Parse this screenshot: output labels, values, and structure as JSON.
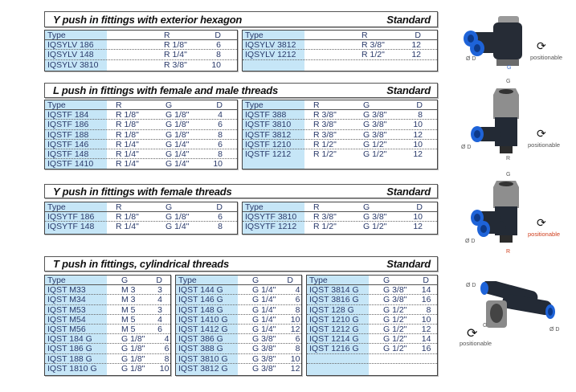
{
  "sections": [
    {
      "title": "Y push in fittings with exterior hexagon",
      "badge": "Standard",
      "layout": "g3a",
      "tables": [
        {
          "columns": [
            "Type",
            "R",
            "D"
          ],
          "rows": [
            [
              "IQSYLV 186",
              "R 1/8\"",
              "6"
            ],
            [
              "IQSYLV 148",
              "R 1/4\"",
              "8"
            ],
            [
              "IQSYLV 3810",
              "R 3/8\"",
              "10"
            ]
          ]
        },
        {
          "columns": [
            "Type",
            "R",
            "D"
          ],
          "rows": [
            [
              "IQSYLV 3812",
              "R 3/8\"",
              "12"
            ],
            [
              "IQSYLV 1212",
              "R 1/2\"",
              "12"
            ],
            [
              "",
              "",
              ""
            ]
          ]
        }
      ]
    },
    {
      "title": "L push in fittings with female and male threads",
      "badge": "Standard",
      "layout": "g4",
      "tables": [
        {
          "columns": [
            "Type",
            "R",
            "G",
            "D"
          ],
          "rows": [
            [
              "IQSTF 184",
              "R 1/8\"",
              "G 1/8\"",
              "4"
            ],
            [
              "IQSTF 186",
              "R 1/8\"",
              "G 1/8\"",
              "6"
            ],
            [
              "IQSTF 188",
              "R 1/8\"",
              "G 1/8\"",
              "8"
            ],
            [
              "IQSTF 146",
              "R 1/4\"",
              "G 1/4\"",
              "6"
            ],
            [
              "IQSTF 148",
              "R 1/4\"",
              "G 1/4\"",
              "8"
            ],
            [
              "IQSTF 1410",
              "R 1/4\"",
              "G 1/4\"",
              "10"
            ]
          ]
        },
        {
          "columns": [
            "Type",
            "R",
            "G",
            "D"
          ],
          "rows": [
            [
              "IQSTF 388",
              "R 3/8\"",
              "G 3/8\"",
              "8"
            ],
            [
              "IQSTF 3810",
              "R 3/8\"",
              "G 3/8\"",
              "10"
            ],
            [
              "IQSTF 3812",
              "R 3/8\"",
              "G 3/8\"",
              "12"
            ],
            [
              "IQSTF 1210",
              "R 1/2\"",
              "G 1/2\"",
              "10"
            ],
            [
              "IQSTF 1212",
              "R 1/2\"",
              "G 1/2\"",
              "12"
            ]
          ]
        }
      ]
    },
    {
      "title": "Y push in fittings with female threads",
      "badge": "Standard",
      "layout": "g4",
      "tables": [
        {
          "columns": [
            "Type",
            "R",
            "G",
            "D"
          ],
          "rows": [
            [
              "IQSYTF 186",
              "R 1/8\"",
              "G 1/8\"",
              "6"
            ],
            [
              "IQSYTF 148",
              "R 1/4\"",
              "G 1/4\"",
              "8"
            ]
          ]
        },
        {
          "columns": [
            "Type",
            "R",
            "G",
            "D"
          ],
          "rows": [
            [
              "IQSYTF 3810",
              "R 3/8\"",
              "G 3/8\"",
              "10"
            ],
            [
              "IQSYTF 1212",
              "R 1/2\"",
              "G 1/2\"",
              "12"
            ]
          ]
        }
      ]
    },
    {
      "title": "T push in fittings, cylindrical threads",
      "badge": "Standard",
      "layout": "g3t",
      "tables": [
        {
          "columns": [
            "Type",
            "G",
            "D"
          ],
          "rows": [
            [
              "IQST M33",
              "M 3",
              "3"
            ],
            [
              "IQST M34",
              "M 3",
              "4"
            ],
            [
              "IQST M53",
              "M 5",
              "3"
            ],
            [
              "IQST M54",
              "M 5",
              "4"
            ],
            [
              "IQST M56",
              "M 5",
              "6"
            ],
            [
              "IQST 184 G",
              "G 1/8\"",
              "4"
            ],
            [
              "IQST 186 G",
              "G 1/8\"",
              "6"
            ],
            [
              "IQST 188 G",
              "G 1/8\"",
              "8"
            ],
            [
              "IQST 1810 G",
              "G 1/8\"",
              "10"
            ]
          ]
        },
        {
          "columns": [
            "Type",
            "G",
            "D"
          ],
          "rows": [
            [
              "IQST 144 G",
              "G 1/4\"",
              "4"
            ],
            [
              "IQST 146 G",
              "G 1/4\"",
              "6"
            ],
            [
              "IQST 148 G",
              "G 1/4\"",
              "8"
            ],
            [
              "IQST 1410 G",
              "G 1/4\"",
              "10"
            ],
            [
              "IQST 1412 G",
              "G 1/4\"",
              "12"
            ],
            [
              "IQST 386 G",
              "G 3/8\"",
              "6"
            ],
            [
              "IQST 388 G",
              "G 3/8\"",
              "8"
            ],
            [
              "IQST 3810 G",
              "G 3/8\"",
              "10"
            ],
            [
              "IQST 3812 G",
              "G 3/8\"",
              "12"
            ]
          ]
        },
        {
          "columns": [
            "Type",
            "G",
            "D"
          ],
          "rows": [
            [
              "IQST 3814 G",
              "G 3/8\"",
              "14"
            ],
            [
              "IQST 3816 G",
              "G 3/8\"",
              "16"
            ],
            [
              "IQST 128 G",
              "G 1/2\"",
              "8"
            ],
            [
              "IQST 1210 G",
              "G 1/2\"",
              "10"
            ],
            [
              "IQST 1212 G",
              "G 1/2\"",
              "12"
            ],
            [
              "IQST 1214 G",
              "G 1/2\"",
              "14"
            ],
            [
              "IQST 1216 G",
              "G 1/2\"",
              "16"
            ],
            [
              "",
              "",
              ""
            ],
            [
              "",
              "",
              ""
            ]
          ]
        }
      ]
    }
  ],
  "images": [
    {
      "labels": {
        "d": "Ø D",
        "g": "G"
      },
      "positionable": "positionable"
    },
    {
      "labels": {
        "g": "G",
        "d": "Ø D",
        "r": "R"
      },
      "positionable": "positionable"
    },
    {
      "labels": {
        "g": "G",
        "d": "Ø D",
        "r": "R"
      },
      "positionable": "positionable"
    },
    {
      "labels": {
        "d1": "Ø D",
        "g": "G",
        "d2": "Ø D"
      },
      "positionable": "positionable"
    }
  ],
  "colors": {
    "stripe": "#c6e6f7",
    "port_blue": "#1e63d8",
    "body": "#1c2330",
    "accent_blue_label": "#3b6fd0",
    "accent_red_label": "#d0401f"
  }
}
